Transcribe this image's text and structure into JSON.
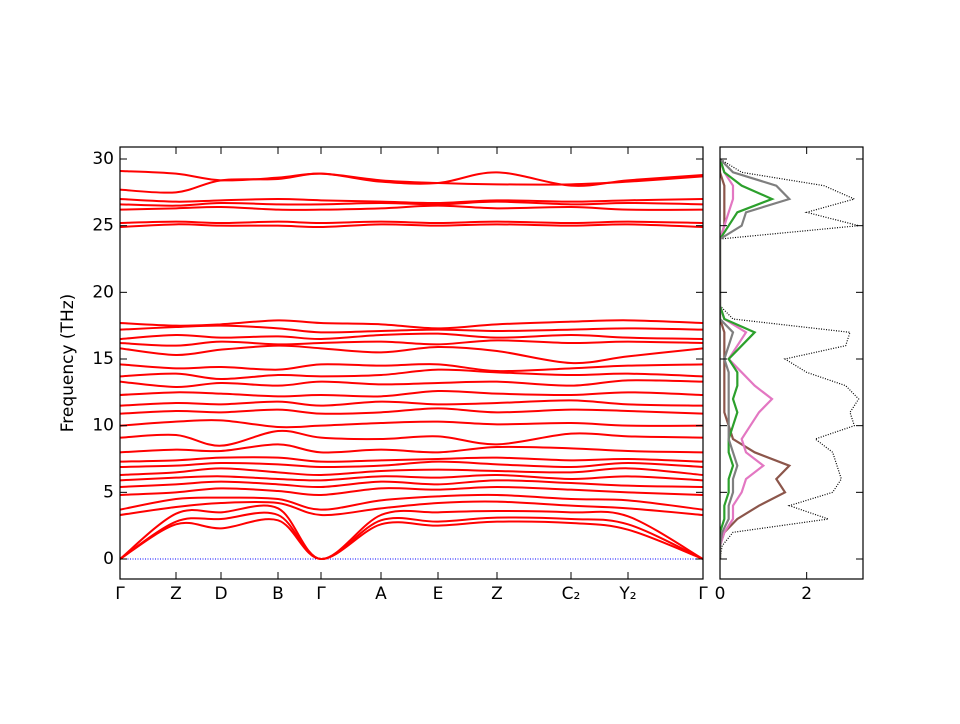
{
  "chart_data": [
    {
      "type": "bands",
      "ylabel": "Frequency (THz)",
      "color": "#ff0000",
      "zero_line_color": "#0000ff",
      "xlim": [
        0,
        5.83
      ],
      "xticks": [
        {
          "value": 0,
          "label": "Γ"
        },
        {
          "value": 0.56,
          "label": "Z"
        },
        {
          "value": 1.01,
          "label": "D"
        },
        {
          "value": 1.58,
          "label": "B"
        },
        {
          "value": 2.01,
          "label": "Γ"
        },
        {
          "value": 2.61,
          "label": "A"
        },
        {
          "value": 3.18,
          "label": "E"
        },
        {
          "value": 3.77,
          "label": "Z"
        },
        {
          "value": 4.51,
          "label": "C₂"
        },
        {
          "value": 5.08,
          "label": "Y₂"
        },
        {
          "value": 5.83,
          "label": "Γ"
        }
      ],
      "x": [
        0,
        0.56,
        1.01,
        1.58,
        2.01,
        2.61,
        3.18,
        3.77,
        4.51,
        5.08,
        5.83
      ],
      "ylim": [
        -1.5,
        30.9
      ],
      "yticks": [
        0,
        5,
        10,
        15,
        20,
        25,
        30
      ],
      "series": [
        {
          "values": [
            0,
            2.6,
            2.3,
            2.9,
            0,
            2.6,
            2.5,
            2.8,
            2.7,
            2.2,
            0
          ]
        },
        {
          "values": [
            0,
            2.8,
            3.0,
            3.3,
            0,
            2.9,
            2.8,
            3.1,
            3.0,
            2.6,
            0
          ]
        },
        {
          "values": [
            0,
            3.4,
            3.5,
            3.8,
            0,
            3.3,
            3.5,
            3.6,
            3.5,
            3.2,
            0
          ]
        },
        {
          "values": [
            3.3,
            3.9,
            4.2,
            4.2,
            3.3,
            3.8,
            4.2,
            4.3,
            4.0,
            3.8,
            3.3
          ]
        },
        {
          "values": [
            3.7,
            4.5,
            4.6,
            4.5,
            3.7,
            4.4,
            4.7,
            4.8,
            4.5,
            4.4,
            3.7
          ]
        },
        {
          "values": [
            4.8,
            5.0,
            5.3,
            5.1,
            4.8,
            5.3,
            5.2,
            5.4,
            5.2,
            5.0,
            4.8
          ]
        },
        {
          "values": [
            5.4,
            5.6,
            5.8,
            5.6,
            5.4,
            5.8,
            5.6,
            5.9,
            5.7,
            5.5,
            5.4
          ]
        },
        {
          "values": [
            5.9,
            6.1,
            6.2,
            6.0,
            5.9,
            6.2,
            6.1,
            6.3,
            6.0,
            6.2,
            5.9
          ]
        },
        {
          "values": [
            6.3,
            6.5,
            6.8,
            6.5,
            6.3,
            6.6,
            6.7,
            6.6,
            6.5,
            6.8,
            6.3
          ]
        },
        {
          "values": [
            6.9,
            7.0,
            7.2,
            7.1,
            6.9,
            7.0,
            7.3,
            7.1,
            6.9,
            7.2,
            6.9
          ]
        },
        {
          "values": [
            7.3,
            7.4,
            7.6,
            7.6,
            7.3,
            7.4,
            7.5,
            7.6,
            7.4,
            7.5,
            7.3
          ]
        },
        {
          "values": [
            8.0,
            8.2,
            8.1,
            8.6,
            8.0,
            8.2,
            8.0,
            8.4,
            8.3,
            8.1,
            8.0
          ]
        },
        {
          "values": [
            9.1,
            9.3,
            8.5,
            9.6,
            9.1,
            9.0,
            9.2,
            8.6,
            9.4,
            9.2,
            9.1
          ]
        },
        {
          "values": [
            10.0,
            10.3,
            10.4,
            9.9,
            10.0,
            10.2,
            10.3,
            10.1,
            10.2,
            10.0,
            10.0
          ]
        },
        {
          "values": [
            10.9,
            11.1,
            11.0,
            11.2,
            10.9,
            11.0,
            11.3,
            11.0,
            11.2,
            11.1,
            10.9
          ]
        },
        {
          "values": [
            11.5,
            11.7,
            11.6,
            11.8,
            11.5,
            11.8,
            11.6,
            11.7,
            11.9,
            11.6,
            11.5
          ]
        },
        {
          "values": [
            12.3,
            12.5,
            12.4,
            12.2,
            12.3,
            12.2,
            12.6,
            12.4,
            12.3,
            12.5,
            12.3
          ]
        },
        {
          "values": [
            13.3,
            12.9,
            13.2,
            13.0,
            13.3,
            13.1,
            13.2,
            13.3,
            13.0,
            13.4,
            13.3
          ]
        },
        {
          "values": [
            13.7,
            13.9,
            13.5,
            13.8,
            13.7,
            13.8,
            14.2,
            14.0,
            13.8,
            13.9,
            13.7
          ]
        },
        {
          "values": [
            14.6,
            14.3,
            14.4,
            14.2,
            14.6,
            14.5,
            14.6,
            14.1,
            14.3,
            14.5,
            14.6
          ]
        },
        {
          "values": [
            15.8,
            15.3,
            15.7,
            16.0,
            15.8,
            15.5,
            15.9,
            15.6,
            14.7,
            15.2,
            15.8
          ]
        },
        {
          "values": [
            16.2,
            16.0,
            16.3,
            16.1,
            16.2,
            16.3,
            16.1,
            16.4,
            16.2,
            16.3,
            16.2
          ]
        },
        {
          "values": [
            16.5,
            16.8,
            16.6,
            16.7,
            16.5,
            16.8,
            16.9,
            16.6,
            16.8,
            16.6,
            16.5
          ]
        },
        {
          "values": [
            17.2,
            17.4,
            17.5,
            17.3,
            17.0,
            17.1,
            17.2,
            17.1,
            17.2,
            17.3,
            17.2
          ]
        },
        {
          "values": [
            17.7,
            17.5,
            17.6,
            17.9,
            17.7,
            17.6,
            17.3,
            17.6,
            17.8,
            17.9,
            17.7
          ]
        },
        {
          "values": [
            24.9,
            25.1,
            25.0,
            25.0,
            24.9,
            25.1,
            25.0,
            25.1,
            25.0,
            25.1,
            24.9
          ]
        },
        {
          "values": [
            25.2,
            25.3,
            25.2,
            25.3,
            25.2,
            25.3,
            25.2,
            25.3,
            25.2,
            25.3,
            25.2
          ]
        },
        {
          "values": [
            26.2,
            26.3,
            26.4,
            26.2,
            26.2,
            26.3,
            26.5,
            26.3,
            26.4,
            26.2,
            26.2
          ]
        },
        {
          "values": [
            26.6,
            26.5,
            26.7,
            26.6,
            26.6,
            26.7,
            26.6,
            26.8,
            26.6,
            26.7,
            26.6
          ]
        },
        {
          "values": [
            27.0,
            26.8,
            26.9,
            27.0,
            26.9,
            26.8,
            26.7,
            26.9,
            26.8,
            26.9,
            27.0
          ]
        },
        {
          "values": [
            27.7,
            27.5,
            28.4,
            28.5,
            28.9,
            28.3,
            28.2,
            29.0,
            28.0,
            28.4,
            28.8
          ]
        },
        {
          "values": [
            29.1,
            28.9,
            28.4,
            28.6,
            28.9,
            28.4,
            28.2,
            28.1,
            28.1,
            28.3,
            28.7
          ]
        }
      ]
    },
    {
      "type": "dos",
      "xlim": [
        0,
        3.3
      ],
      "xticks": [
        0,
        2
      ],
      "ylim": [
        -1.5,
        30.9
      ],
      "yticks": [
        0,
        5,
        10,
        15,
        20,
        25,
        30
      ],
      "y": [
        0,
        1,
        2,
        3,
        4,
        5,
        6,
        7,
        8,
        9,
        10,
        11,
        12,
        13,
        14,
        15,
        16,
        17,
        18,
        19,
        20,
        21,
        22,
        23,
        24,
        25,
        26,
        27,
        28,
        29,
        30
      ],
      "series": [
        {
          "color": "#000000",
          "dashed": true,
          "values": [
            0,
            0.05,
            0.3,
            2.5,
            1.6,
            2.6,
            2.8,
            2.7,
            2.6,
            2.2,
            3.1,
            3.0,
            3.2,
            2.9,
            2.0,
            1.5,
            2.9,
            3.0,
            0.3,
            0,
            0,
            0,
            0,
            0,
            0,
            3.2,
            2.0,
            3.1,
            2.4,
            0.5,
            0
          ]
        },
        {
          "color": "#8c564b",
          "values": [
            0,
            0,
            0.1,
            0.4,
            0.9,
            1.5,
            1.3,
            1.6,
            0.8,
            0.3,
            0.2,
            0.1,
            0.1,
            0.1,
            0.1,
            0.1,
            0.1,
            0.1,
            0,
            0,
            0,
            0,
            0,
            0,
            0,
            0.1,
            0.1,
            0.1,
            0.1,
            0,
            0
          ]
        },
        {
          "color": "#e377c2",
          "values": [
            0,
            0,
            0.1,
            0.3,
            0.3,
            0.5,
            0.6,
            1.0,
            0.6,
            0.5,
            0.7,
            0.9,
            1.2,
            0.8,
            0.5,
            0.2,
            0.4,
            0.6,
            0.1,
            0,
            0,
            0,
            0,
            0,
            0,
            0.1,
            0.2,
            0.3,
            0.3,
            0.1,
            0
          ]
        },
        {
          "color": "#2ca02c",
          "values": [
            0,
            0,
            0,
            0.1,
            0.1,
            0.2,
            0.2,
            0.3,
            0.2,
            0.2,
            0.3,
            0.4,
            0.3,
            0.4,
            0.4,
            0.2,
            0.5,
            0.8,
            0.1,
            0,
            0,
            0,
            0,
            0,
            0,
            0.2,
            0.4,
            1.2,
            0.5,
            0.1,
            0
          ]
        },
        {
          "color": "#7f7f7f",
          "values": [
            0,
            0,
            0.05,
            0.2,
            0.2,
            0.3,
            0.3,
            0.4,
            0.3,
            0.2,
            0.2,
            0.2,
            0.2,
            0.2,
            0.2,
            0.1,
            0.2,
            0.3,
            0,
            0,
            0,
            0,
            0,
            0,
            0,
            0.5,
            0.6,
            1.6,
            1.3,
            0.3,
            0
          ]
        }
      ]
    }
  ]
}
